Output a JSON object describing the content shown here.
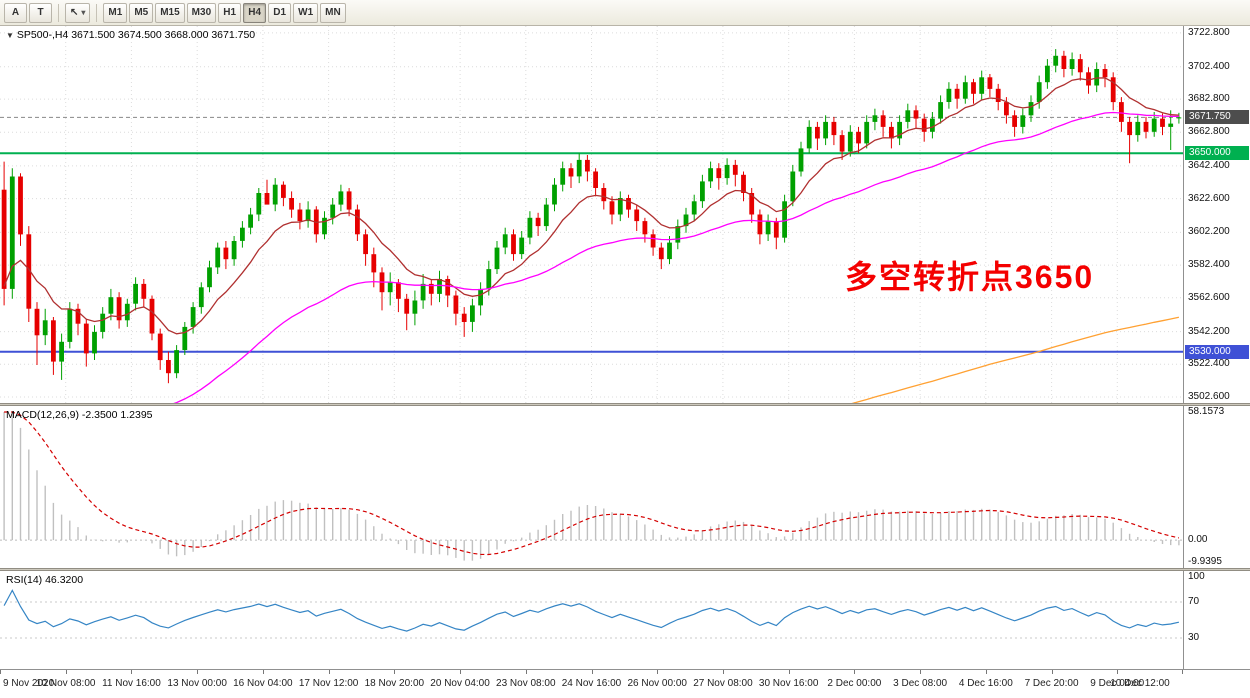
{
  "toolbar": {
    "tool_buttons": [
      {
        "name": "text-tool-button",
        "label": "A"
      },
      {
        "name": "shapes-tool-button",
        "label": "T"
      }
    ],
    "cursor_button": {
      "icon": "↖",
      "caret": "▾"
    },
    "timeframes": [
      "M1",
      "M5",
      "M15",
      "M30",
      "H1",
      "H4",
      "D1",
      "W1",
      "MN"
    ],
    "active_timeframe": "H4"
  },
  "main": {
    "expander_icon": "▼",
    "symbol_line": "SP500-,H4 3671.500 3674.500 3668.000 3671.750",
    "annotation": "多空转折点3650",
    "annotation_color": "#F40000"
  },
  "chart_data": {
    "type": "candlestick",
    "symbol": "SP500-",
    "timeframe": "H4",
    "price_range": [
      3499.0,
      3727.0
    ],
    "price_axis": [
      3722.8,
      3702.4,
      3682.8,
      3662.8,
      3642.4,
      3622.6,
      3602.2,
      3582.4,
      3562.6,
      3542.2,
      3522.4,
      3502.6
    ],
    "price_axis_labels": [
      "3722.800",
      "3702.400",
      "3682.800",
      "3662.800",
      "3642.400",
      "3622.600",
      "3602.200",
      "3582.400",
      "3562.600",
      "3542.200",
      "3522.400",
      "3502.600"
    ],
    "candle_colors": {
      "bull": "#00A000",
      "bear": "#E60000"
    },
    "hlines": [
      {
        "price": 3650.0,
        "label": "3650.000",
        "color": "#00B050",
        "width": 2
      },
      {
        "price": 3530.0,
        "label": "3530.000",
        "color": "#3F51D6",
        "width": 2
      }
    ],
    "current_price": {
      "value": 3671.75,
      "label": "3671.750",
      "bg": "#4D4D4D"
    },
    "ma_lines": [
      {
        "name": "ma-fast-red",
        "period": 10,
        "seed": 3570,
        "color": "#B03030"
      },
      {
        "name": "ma-mid-magenta",
        "period": 40,
        "seed": 3400,
        "color": "#FF00FF"
      },
      {
        "name": "ma-slow-orange",
        "alpha": 0.0085,
        "seed": 3350,
        "color": "#FFA133"
      }
    ],
    "time_labels": [
      "9 Nov 2020",
      "10 Nov 08:00",
      "11 Nov 16:00",
      "13 Nov 00:00",
      "16 Nov 04:00",
      "17 Nov 12:00",
      "18 Nov 20:00",
      "20 Nov 04:00",
      "23 Nov 08:00",
      "24 Nov 16:00",
      "26 Nov 00:00",
      "27 Nov 08:00",
      "30 Nov 16:00",
      "2 Dec 00:00",
      "3 Dec 08:00",
      "4 Dec 16:00",
      "7 Dec 20:00",
      "9 Dec 04:00",
      "10 Dec 12:00"
    ],
    "ohlc": [
      [
        3628,
        3645,
        3558,
        3568
      ],
      [
        3568,
        3641,
        3562,
        3636
      ],
      [
        3636,
        3638,
        3594,
        3601
      ],
      [
        3601,
        3606,
        3548,
        3556
      ],
      [
        3556,
        3560,
        3522,
        3540
      ],
      [
        3540,
        3556,
        3534,
        3549
      ],
      [
        3549,
        3551,
        3516,
        3524
      ],
      [
        3524,
        3541,
        3513,
        3536
      ],
      [
        3536,
        3560,
        3532,
        3556
      ],
      [
        3556,
        3559,
        3540,
        3547
      ],
      [
        3547,
        3550,
        3521,
        3529
      ],
      [
        3529,
        3546,
        3525,
        3542
      ],
      [
        3542,
        3557,
        3538,
        3553
      ],
      [
        3553,
        3568,
        3549,
        3563
      ],
      [
        3563,
        3566,
        3544,
        3549
      ],
      [
        3549,
        3562,
        3545,
        3559
      ],
      [
        3559,
        3575,
        3555,
        3571
      ],
      [
        3571,
        3574,
        3557,
        3562
      ],
      [
        3562,
        3564,
        3537,
        3541
      ],
      [
        3541,
        3544,
        3519,
        3525
      ],
      [
        3525,
        3530,
        3511,
        3517
      ],
      [
        3517,
        3534,
        3514,
        3531
      ],
      [
        3531,
        3548,
        3528,
        3545
      ],
      [
        3545,
        3560,
        3541,
        3557
      ],
      [
        3557,
        3572,
        3553,
        3569
      ],
      [
        3569,
        3585,
        3566,
        3581
      ],
      [
        3581,
        3596,
        3577,
        3593
      ],
      [
        3593,
        3597,
        3580,
        3586
      ],
      [
        3586,
        3600,
        3582,
        3597
      ],
      [
        3597,
        3609,
        3593,
        3605
      ],
      [
        3605,
        3617,
        3601,
        3613
      ],
      [
        3613,
        3629,
        3609,
        3626
      ],
      [
        3626,
        3634,
        3621,
        3619
      ],
      [
        3619,
        3635,
        3615,
        3631
      ],
      [
        3631,
        3633,
        3618,
        3623
      ],
      [
        3623,
        3627,
        3611,
        3616
      ],
      [
        3616,
        3620,
        3604,
        3609
      ],
      [
        3609,
        3621,
        3605,
        3616
      ],
      [
        3616,
        3618,
        3596,
        3601
      ],
      [
        3601,
        3615,
        3598,
        3611
      ],
      [
        3611,
        3623,
        3607,
        3619
      ],
      [
        3619,
        3631,
        3615,
        3627
      ],
      [
        3627,
        3629,
        3612,
        3616
      ],
      [
        3616,
        3619,
        3597,
        3601
      ],
      [
        3601,
        3604,
        3582,
        3589
      ],
      [
        3589,
        3593,
        3569,
        3578
      ],
      [
        3578,
        3581,
        3555,
        3566
      ],
      [
        3566,
        3578,
        3558,
        3572
      ],
      [
        3572,
        3574,
        3554,
        3562
      ],
      [
        3562,
        3565,
        3543,
        3553
      ],
      [
        3553,
        3567,
        3546,
        3561
      ],
      [
        3561,
        3577,
        3556,
        3571
      ],
      [
        3571,
        3574,
        3558,
        3565
      ],
      [
        3565,
        3579,
        3560,
        3574
      ],
      [
        3574,
        3576,
        3557,
        3564
      ],
      [
        3564,
        3567,
        3546,
        3553
      ],
      [
        3553,
        3557,
        3539,
        3548
      ],
      [
        3548,
        3562,
        3542,
        3558
      ],
      [
        3558,
        3572,
        3552,
        3568
      ],
      [
        3568,
        3585,
        3564,
        3580
      ],
      [
        3580,
        3597,
        3577,
        3593
      ],
      [
        3593,
        3605,
        3589,
        3601
      ],
      [
        3601,
        3604,
        3585,
        3589
      ],
      [
        3589,
        3603,
        3586,
        3599
      ],
      [
        3599,
        3615,
        3595,
        3611
      ],
      [
        3611,
        3614,
        3600,
        3606
      ],
      [
        3606,
        3623,
        3603,
        3619
      ],
      [
        3619,
        3635,
        3615,
        3631
      ],
      [
        3631,
        3645,
        3627,
        3641
      ],
      [
        3641,
        3644,
        3629,
        3636
      ],
      [
        3636,
        3650,
        3632,
        3646
      ],
      [
        3646,
        3649,
        3633,
        3639
      ],
      [
        3639,
        3641,
        3624,
        3629
      ],
      [
        3629,
        3632,
        3616,
        3621
      ],
      [
        3621,
        3624,
        3607,
        3613
      ],
      [
        3613,
        3627,
        3609,
        3623
      ],
      [
        3623,
        3625,
        3611,
        3616
      ],
      [
        3616,
        3619,
        3603,
        3609
      ],
      [
        3609,
        3611,
        3596,
        3601
      ],
      [
        3601,
        3604,
        3588,
        3593
      ],
      [
        3593,
        3596,
        3580,
        3586
      ],
      [
        3586,
        3600,
        3583,
        3596
      ],
      [
        3596,
        3610,
        3592,
        3606
      ],
      [
        3606,
        3617,
        3602,
        3613
      ],
      [
        3613,
        3625,
        3609,
        3621
      ],
      [
        3621,
        3637,
        3617,
        3633
      ],
      [
        3633,
        3645,
        3629,
        3641
      ],
      [
        3641,
        3644,
        3628,
        3635
      ],
      [
        3635,
        3647,
        3631,
        3643
      ],
      [
        3643,
        3646,
        3630,
        3637
      ],
      [
        3637,
        3639,
        3621,
        3626
      ],
      [
        3626,
        3629,
        3608,
        3613
      ],
      [
        3613,
        3616,
        3595,
        3601
      ],
      [
        3601,
        3613,
        3597,
        3609
      ],
      [
        3609,
        3611,
        3592,
        3599
      ],
      [
        3599,
        3625,
        3596,
        3621
      ],
      [
        3621,
        3643,
        3618,
        3639
      ],
      [
        3639,
        3657,
        3636,
        3653
      ],
      [
        3653,
        3670,
        3650,
        3666
      ],
      [
        3666,
        3669,
        3652,
        3659
      ],
      [
        3659,
        3673,
        3655,
        3669
      ],
      [
        3669,
        3672,
        3655,
        3661
      ],
      [
        3661,
        3664,
        3646,
        3651
      ],
      [
        3651,
        3667,
        3648,
        3663
      ],
      [
        3663,
        3666,
        3650,
        3656
      ],
      [
        3656,
        3673,
        3653,
        3669
      ],
      [
        3669,
        3677,
        3664,
        3673
      ],
      [
        3673,
        3676,
        3660,
        3666
      ],
      [
        3666,
        3669,
        3653,
        3659
      ],
      [
        3659,
        3673,
        3655,
        3669
      ],
      [
        3669,
        3680,
        3665,
        3676
      ],
      [
        3676,
        3679,
        3665,
        3671
      ],
      [
        3671,
        3674,
        3657,
        3663
      ],
      [
        3663,
        3675,
        3659,
        3671
      ],
      [
        3671,
        3685,
        3668,
        3681
      ],
      [
        3681,
        3693,
        3677,
        3689
      ],
      [
        3689,
        3692,
        3677,
        3683
      ],
      [
        3683,
        3697,
        3680,
        3693
      ],
      [
        3693,
        3695,
        3680,
        3686
      ],
      [
        3686,
        3700,
        3682,
        3696
      ],
      [
        3696,
        3698,
        3684,
        3689
      ],
      [
        3689,
        3692,
        3676,
        3681
      ],
      [
        3681,
        3684,
        3668,
        3673
      ],
      [
        3673,
        3676,
        3660,
        3666
      ],
      [
        3666,
        3677,
        3662,
        3673
      ],
      [
        3673,
        3685,
        3669,
        3681
      ],
      [
        3681,
        3697,
        3677,
        3693
      ],
      [
        3693,
        3707,
        3689,
        3703
      ],
      [
        3703,
        3713,
        3699,
        3709
      ],
      [
        3709,
        3712,
        3696,
        3701
      ],
      [
        3701,
        3711,
        3697,
        3707
      ],
      [
        3707,
        3710,
        3694,
        3699
      ],
      [
        3699,
        3702,
        3686,
        3691
      ],
      [
        3691,
        3705,
        3687,
        3701
      ],
      [
        3701,
        3704,
        3690,
        3696
      ],
      [
        3696,
        3699,
        3676,
        3681
      ],
      [
        3681,
        3684,
        3663,
        3669
      ],
      [
        3669,
        3672,
        3644,
        3661
      ],
      [
        3661,
        3673,
        3657,
        3669
      ],
      [
        3669,
        3672,
        3659,
        3663
      ],
      [
        3663,
        3675,
        3660,
        3671
      ],
      [
        3671,
        3674,
        3661,
        3666
      ],
      [
        3666,
        3676,
        3652,
        3668
      ],
      [
        3671.5,
        3674.5,
        3668,
        3671.75
      ]
    ],
    "macd": {
      "title": "MACD(12,26,9) -2.3500 1.2395",
      "calc": [
        12,
        26,
        9
      ],
      "seeds": [
        3650,
        3575
      ],
      "range": [
        -9.9395,
        58.1573
      ],
      "axis": [
        {
          "v": 58.1573,
          "t": "58.1573"
        },
        {
          "v": 0,
          "t": "0.00"
        },
        {
          "v": -9.9395,
          "t": "-9.9395"
        }
      ],
      "hist_color": "#C0C0C0",
      "signal_color": "#D40000"
    },
    "rsi": {
      "title": "RSI(14) 46.3200",
      "period": 14,
      "seed_gain": 3.5,
      "seed_loss": 1.8,
      "range": [
        0,
        100
      ],
      "levels": [
        30,
        70
      ],
      "axis": [
        {
          "v": 100,
          "t": "100"
        },
        {
          "v": 70,
          "t": "70"
        },
        {
          "v": 30,
          "t": "30"
        }
      ],
      "color": "#3585C5"
    }
  }
}
